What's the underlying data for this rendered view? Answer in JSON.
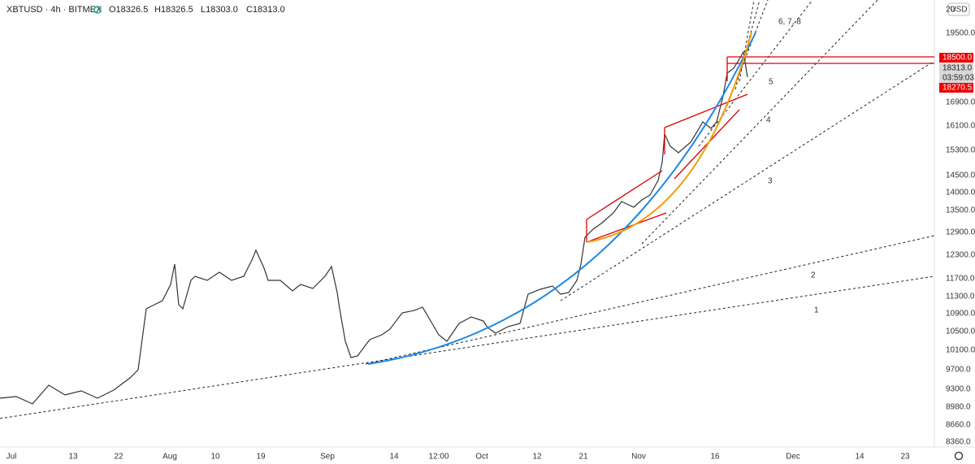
{
  "header": {
    "symbol": "XBTUSD · 4h · BITMEX",
    "open": "O18326.5",
    "high": "H18326.5",
    "low": "L18303.0",
    "close": "C18313.0"
  },
  "currency": "USD",
  "price_axis": [
    "20",
    "19500.0",
    "16900.0",
    "16100.0",
    "15300.0",
    "14500.0",
    "14000.0",
    "13500.0",
    "12900.0",
    "12300.0",
    "11700.0",
    "11300.0",
    "10900.0",
    "10500.0",
    "10100.0",
    "9700.0",
    "9300.0",
    "8980.0",
    "8660.0",
    "8360.0"
  ],
  "price_tags": {
    "level": "18500.0",
    "last": "18313.0",
    "countdown": "03:59:03",
    "low": "18270.5"
  },
  "time_axis": [
    "Jul",
    "13",
    "22",
    "Aug",
    "10",
    "19",
    "Sep",
    "14",
    "12:00",
    "Oct",
    "12",
    "21",
    "Nov",
    "16",
    "Dec",
    "14",
    "23"
  ],
  "line_labels": [
    "1",
    "2",
    "3",
    "4",
    "5",
    "6, 7, 8"
  ]
}
